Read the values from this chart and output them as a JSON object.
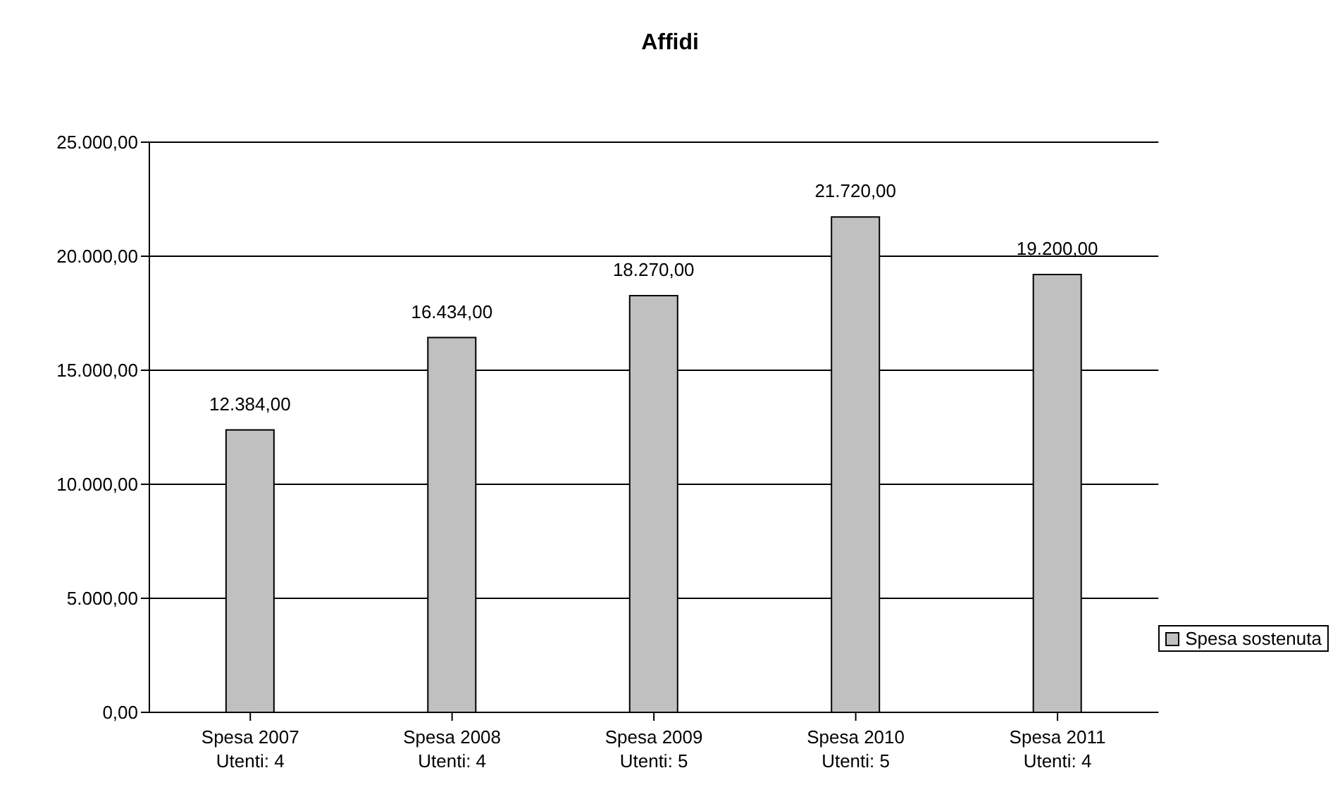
{
  "chart_data": {
    "type": "bar",
    "title": "Affidi",
    "categories": [
      "Spesa 2007\nUtenti: 4",
      "Spesa 2008\nUtenti: 4",
      "Spesa 2009\nUtenti: 5",
      "Spesa 2010\nUtenti: 5",
      "Spesa 2011\nUtenti: 4"
    ],
    "series": [
      {
        "name": "Spesa sostenuta",
        "color": "#c0c0c0",
        "values": [
          12384,
          16434,
          18270,
          21720,
          19200
        ],
        "value_labels": [
          "12.384,00",
          "16.434,00",
          "18.270,00",
          "21.720,00",
          "19.200,00"
        ]
      }
    ],
    "ylim": [
      0,
      25000
    ],
    "yticks": [
      {
        "value": 0,
        "label": "0,00"
      },
      {
        "value": 5000,
        "label": "5.000,00"
      },
      {
        "value": 10000,
        "label": "10.000,00"
      },
      {
        "value": 15000,
        "label": "15.000,00"
      },
      {
        "value": 20000,
        "label": "20.000,00"
      },
      {
        "value": 25000,
        "label": "25.000,00"
      }
    ],
    "grid": "y",
    "legend": "right"
  }
}
